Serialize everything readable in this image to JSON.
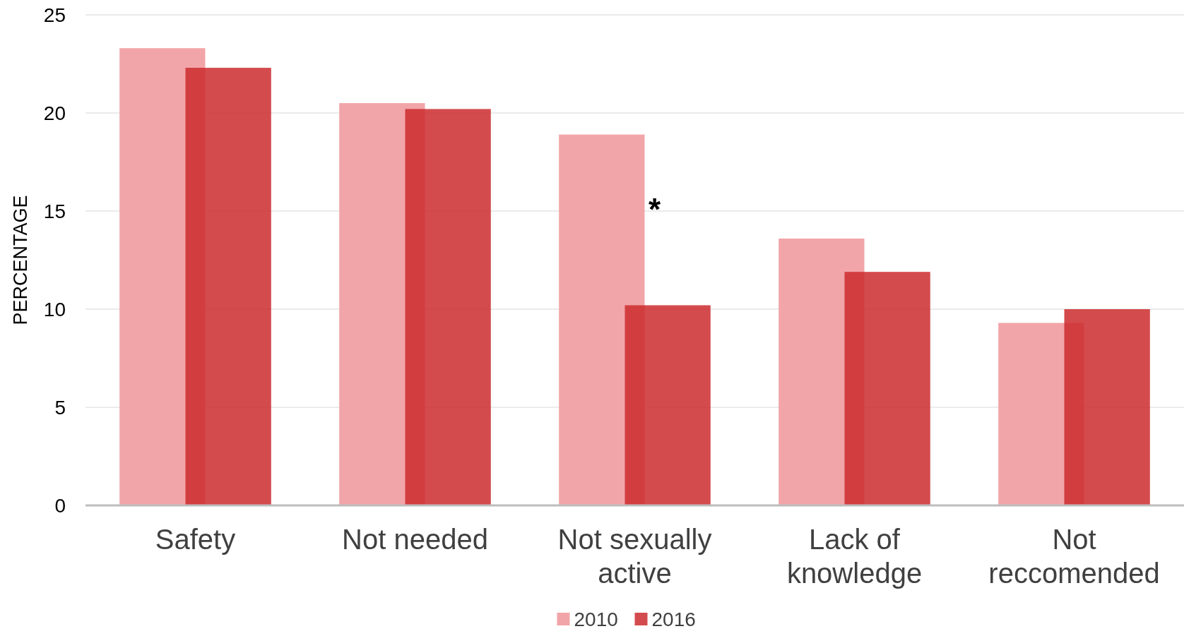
{
  "chart_data": {
    "type": "bar",
    "ylabel": "PERCENTAGE",
    "categories": [
      "Safety",
      "Not needed",
      "Not sexually active",
      "Lack of knowledge",
      "Not reccomended"
    ],
    "series": [
      {
        "name": "2010",
        "color": "#f2a5a8",
        "values": [
          23.3,
          20.5,
          18.9,
          13.6,
          9.3
        ]
      },
      {
        "name": "2016",
        "color": "#cc2b2e",
        "values": [
          22.3,
          20.2,
          10.2,
          11.9,
          10.0
        ]
      }
    ],
    "ylim": [
      0,
      25
    ],
    "yticks": [
      0,
      5,
      10,
      15,
      20,
      25
    ],
    "grid": "y",
    "legend": "bottom",
    "annotations": [
      "*"
    ]
  }
}
